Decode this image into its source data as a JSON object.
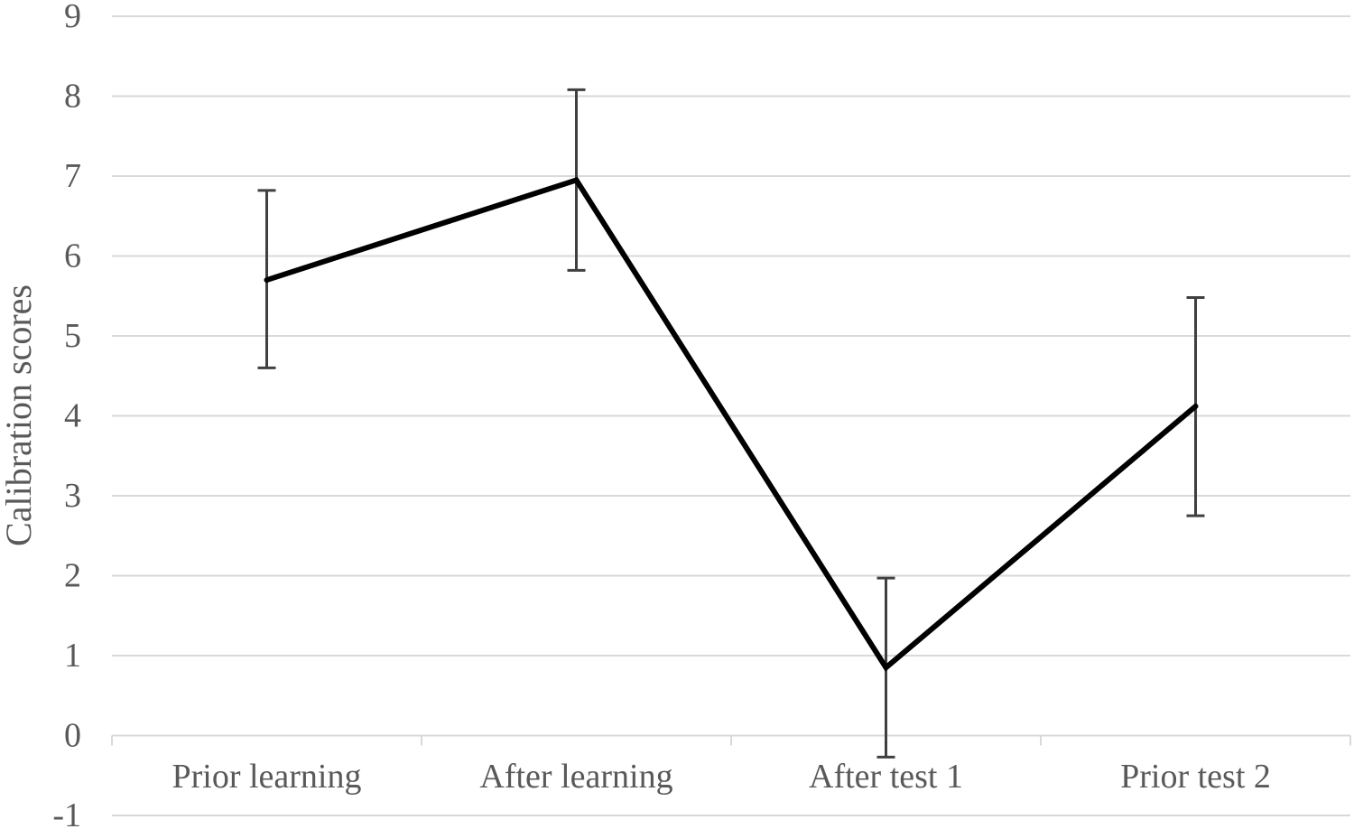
{
  "chart_data": {
    "type": "line",
    "title": "",
    "xlabel": "",
    "ylabel": "Calibration scores",
    "ylim": [
      -1,
      9
    ],
    "yticks": [
      -1,
      0,
      1,
      2,
      3,
      4,
      5,
      6,
      7,
      8,
      9
    ],
    "grid": true,
    "legend": "none",
    "categories": [
      "Prior learning",
      "After learning",
      "After test 1",
      "Prior test 2"
    ],
    "series": [
      {
        "values": [
          5.7,
          6.95,
          0.85,
          4.12
        ],
        "error_low": [
          4.6,
          5.82,
          -0.27,
          2.75
        ],
        "error_high": [
          6.82,
          8.08,
          1.97,
          5.48
        ]
      }
    ],
    "colors": {
      "line": "#000000",
      "error_bar": "#404040",
      "grid": "#d9d9d9",
      "text": "#595959"
    }
  }
}
